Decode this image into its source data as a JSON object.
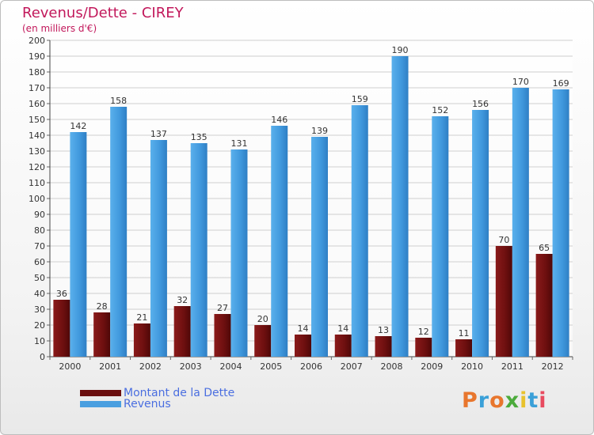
{
  "chart_data": {
    "type": "bar",
    "title": "Revenus/Dette - CIREY",
    "subtitle": "(en milliers d'€)",
    "categories": [
      "2000",
      "2001",
      "2002",
      "2003",
      "2004",
      "2005",
      "2006",
      "2007",
      "2008",
      "2009",
      "2010",
      "2011",
      "2012"
    ],
    "series": [
      {
        "name": "Montant de la Dette",
        "color": "#7a1212",
        "values": [
          36,
          28,
          21,
          32,
          27,
          20,
          14,
          14,
          13,
          12,
          11,
          70,
          65
        ]
      },
      {
        "name": "Revenus",
        "color": "#4a9fe0",
        "values": [
          142,
          158,
          137,
          135,
          131,
          146,
          139,
          159,
          190,
          152,
          156,
          170,
          169
        ]
      }
    ],
    "ylim": [
      0,
      200
    ],
    "yticks": [
      0,
      10,
      20,
      30,
      40,
      50,
      60,
      70,
      80,
      90,
      100,
      110,
      120,
      130,
      140,
      150,
      160,
      170,
      180,
      190,
      200
    ],
    "grid": true,
    "legend_position": "bottom-left"
  },
  "branding": {
    "logo_text": "Proxiti",
    "logo_colors": [
      "#e8762d",
      "#3aa0d8",
      "#e8762d",
      "#4cab3c",
      "#e8c22d",
      "#3aa0d8",
      "#e84a5f"
    ]
  }
}
